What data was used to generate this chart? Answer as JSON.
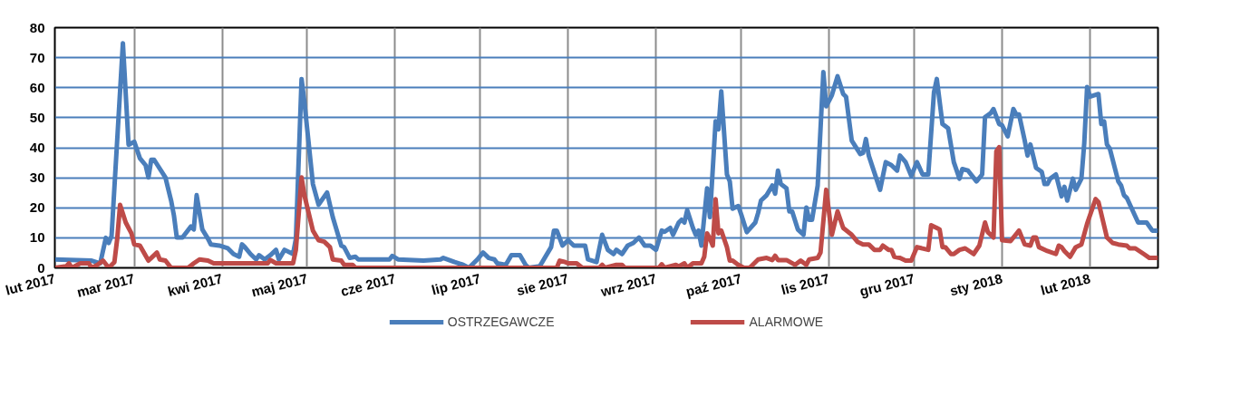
{
  "chart_data": {
    "type": "line",
    "xlim": [
      "2017-02-01",
      "2018-02-25"
    ],
    "ylim": [
      0,
      80
    ],
    "yticks": [
      0,
      10,
      20,
      30,
      40,
      50,
      60,
      70,
      80
    ],
    "xticks": [
      {
        "value": "2017-02-01",
        "label": "lut 2017"
      },
      {
        "value": "2017-03-01",
        "label": "mar 2017"
      },
      {
        "value": "2017-04-01",
        "label": "kwi 2017"
      },
      {
        "value": "2017-05-01",
        "label": "maj 2017"
      },
      {
        "value": "2017-06-01",
        "label": "cze 2017"
      },
      {
        "value": "2017-07-01",
        "label": "lip 2017"
      },
      {
        "value": "2017-08-01",
        "label": "sie 2017"
      },
      {
        "value": "2017-09-01",
        "label": "wrz 2017"
      },
      {
        "value": "2017-10-01",
        "label": "paź 2017"
      },
      {
        "value": "2017-11-01",
        "label": "lis 2017"
      },
      {
        "value": "2017-12-01",
        "label": "gru 2017"
      },
      {
        "value": "2018-01-01",
        "label": "sty 2018"
      },
      {
        "value": "2018-02-01",
        "label": "lut 2018"
      }
    ],
    "grid": true,
    "legend": "bottom",
    "line_style": "solid",
    "series": [
      {
        "name": "OSTRZEGAWCZE",
        "color": "#4a7ebb",
        "x": [
          "2017-02-01",
          "2017-02-14",
          "2017-02-17",
          "2017-02-19",
          "2017-02-20",
          "2017-02-21",
          "2017-02-25",
          "2017-02-27",
          "2017-03-01",
          "2017-03-03",
          "2017-03-05",
          "2017-03-06",
          "2017-03-07",
          "2017-03-08",
          "2017-03-12",
          "2017-03-14",
          "2017-03-15",
          "2017-03-16",
          "2017-03-18",
          "2017-03-21",
          "2017-03-22",
          "2017-03-23",
          "2017-03-25",
          "2017-03-27",
          "2017-03-28",
          "2017-03-31",
          "2017-04-03",
          "2017-04-05",
          "2017-04-07",
          "2017-04-08",
          "2017-04-09",
          "2017-04-11",
          "2017-04-13",
          "2017-04-14",
          "2017-04-16",
          "2017-04-18",
          "2017-04-20",
          "2017-04-21",
          "2017-04-23",
          "2017-04-26",
          "2017-04-27",
          "2017-04-29",
          "2017-04-30",
          "2017-05-03",
          "2017-05-05",
          "2017-05-08",
          "2017-05-10",
          "2017-05-13",
          "2017-05-14",
          "2017-05-16",
          "2017-05-18",
          "2017-05-19",
          "2017-05-30",
          "2017-05-31",
          "2017-06-02",
          "2017-06-11",
          "2017-06-17",
          "2017-06-18",
          "2017-06-22",
          "2017-06-25",
          "2017-06-27",
          "2017-06-30",
          "2017-07-02",
          "2017-07-04",
          "2017-07-06",
          "2017-07-07",
          "2017-07-10",
          "2017-07-12",
          "2017-07-15",
          "2017-07-17",
          "2017-07-18",
          "2017-07-22",
          "2017-07-26",
          "2017-07-27",
          "2017-07-28",
          "2017-07-30",
          "2017-08-01",
          "2017-08-03",
          "2017-08-07",
          "2017-08-08",
          "2017-08-11",
          "2017-08-13",
          "2017-08-15",
          "2017-08-17",
          "2017-08-18",
          "2017-08-20",
          "2017-08-22",
          "2017-08-24",
          "2017-08-26",
          "2017-08-28",
          "2017-08-30",
          "2017-09-01",
          "2017-09-03",
          "2017-09-04",
          "2017-09-06",
          "2017-09-07",
          "2017-09-09",
          "2017-09-10",
          "2017-09-11",
          "2017-09-12",
          "2017-09-14",
          "2017-09-15",
          "2017-09-16",
          "2017-09-17",
          "2017-09-19",
          "2017-09-20",
          "2017-09-22",
          "2017-09-23",
          "2017-09-24",
          "2017-09-26",
          "2017-09-27",
          "2017-09-28",
          "2017-09-30",
          "2017-10-01",
          "2017-10-03",
          "2017-10-06",
          "2017-10-07",
          "2017-10-08",
          "2017-10-10",
          "2017-10-12",
          "2017-10-13",
          "2017-10-14",
          "2017-10-15",
          "2017-10-17",
          "2017-10-18",
          "2017-10-19",
          "2017-10-21",
          "2017-10-23",
          "2017-10-24",
          "2017-10-25",
          "2017-10-26",
          "2017-10-28",
          "2017-10-30",
          "2017-10-31",
          "2017-11-02",
          "2017-11-04",
          "2017-11-06",
          "2017-11-07",
          "2017-11-09",
          "2017-11-12",
          "2017-11-13",
          "2017-11-14",
          "2017-11-15",
          "2017-11-19",
          "2017-11-21",
          "2017-11-23",
          "2017-11-25",
          "2017-11-26",
          "2017-11-28",
          "2017-11-30",
          "2017-12-02",
          "2017-12-04",
          "2017-12-06",
          "2017-12-08",
          "2017-12-09",
          "2017-12-11",
          "2017-12-13",
          "2017-12-15",
          "2017-12-17",
          "2017-12-18",
          "2017-12-20",
          "2017-12-23",
          "2017-12-25",
          "2017-12-26",
          "2017-12-28",
          "2017-12-29",
          "2017-12-31",
          "2018-01-01",
          "2018-01-03",
          "2018-01-05",
          "2018-01-06",
          "2018-01-07",
          "2018-01-09",
          "2018-01-10",
          "2018-01-11",
          "2018-01-13",
          "2018-01-15",
          "2018-01-16",
          "2018-01-17",
          "2018-01-18",
          "2018-01-20",
          "2018-01-22",
          "2018-01-23",
          "2018-01-24",
          "2018-01-26",
          "2018-01-27",
          "2018-01-29",
          "2018-01-30",
          "2018-01-31",
          "2018-02-01",
          "2018-02-04",
          "2018-02-05",
          "2018-02-06",
          "2018-02-07",
          "2018-02-08",
          "2018-02-11",
          "2018-02-12",
          "2018-02-13",
          "2018-02-14",
          "2018-02-18",
          "2018-02-20",
          "2018-02-21",
          "2018-02-23",
          "2018-02-25"
        ],
        "values": [
          2.8,
          2.4,
          1.5,
          10,
          8.3,
          10.6,
          74.8,
          41,
          42,
          36.5,
          34.2,
          30.1,
          36,
          36,
          30.1,
          22.4,
          17.4,
          10.1,
          10.1,
          13.8,
          12.8,
          24.2,
          12.8,
          9.7,
          7.8,
          7.4,
          6.5,
          4.6,
          3.7,
          7.8,
          6.9,
          4.6,
          2.8,
          4.2,
          2.8,
          4.2,
          6,
          2.8,
          6,
          4.6,
          9.7,
          62.9,
          55.2,
          27.9,
          21,
          25.1,
          16.9,
          7.4,
          6.9,
          3.3,
          3.7,
          2.8,
          2.8,
          4,
          2.8,
          2.4,
          2.8,
          3.3,
          1.9,
          1,
          0,
          2.8,
          5.1,
          3.3,
          2.8,
          1.5,
          1,
          4.2,
          4.2,
          1,
          0,
          0.5,
          6.9,
          12.4,
          12.4,
          7.4,
          9.2,
          7.4,
          7.4,
          2.8,
          1.9,
          11,
          6,
          4.6,
          6,
          4.6,
          7.4,
          8.3,
          10.1,
          7.4,
          7.4,
          6,
          12.4,
          12,
          13.3,
          11,
          15.1,
          16,
          15.1,
          19.2,
          13.3,
          11,
          12.4,
          7.4,
          26.5,
          16.9,
          48.8,
          46.1,
          58.8,
          31.1,
          28.8,
          19.7,
          20.6,
          17.9,
          11.9,
          15.1,
          18.3,
          22.4,
          24.2,
          27.4,
          24.7,
          32.4,
          27.9,
          26.5,
          18.8,
          18.8,
          12.8,
          11,
          20.1,
          16,
          16,
          27.4,
          65.2,
          53.8,
          57.5,
          63.8,
          57.9,
          57,
          42.4,
          37.9,
          38.3,
          42.9,
          37.4,
          26,
          35.2,
          34.2,
          32.4,
          37.4,
          35.2,
          30.6,
          35.2,
          31.1,
          31.1,
          58.4,
          62.9,
          47.9,
          46.5,
          35.2,
          29.7,
          32.9,
          32.4,
          28.8,
          31.1,
          50.2,
          51.5,
          52.9,
          47.9,
          47.5,
          43.8,
          52.9,
          51.1,
          51.1,
          42.4,
          37.4,
          41.1,
          33.3,
          32,
          27.9,
          27.9,
          29.7,
          31.1,
          23.8,
          27,
          22.4,
          29.7,
          26,
          29.7,
          41.5,
          60.2,
          57,
          57.9,
          47.9,
          48.8,
          41.1,
          39.7,
          28.8,
          27.4,
          24.2,
          23.3,
          15.1,
          15.1,
          15.1,
          12.4,
          12.4
        ]
      },
      {
        "name": "ALARMOWE",
        "color": "#be4b48",
        "x": [
          "2017-02-01",
          "2017-02-05",
          "2017-02-06",
          "2017-02-07",
          "2017-02-10",
          "2017-02-13",
          "2017-02-14",
          "2017-02-16",
          "2017-02-18",
          "2017-02-20",
          "2017-02-22",
          "2017-02-23",
          "2017-02-24",
          "2017-02-26",
          "2017-02-28",
          "2017-03-01",
          "2017-03-03",
          "2017-03-06",
          "2017-03-07",
          "2017-03-09",
          "2017-03-10",
          "2017-03-12",
          "2017-03-14",
          "2017-03-20",
          "2017-03-22",
          "2017-03-24",
          "2017-03-27",
          "2017-03-29",
          "2017-04-17",
          "2017-04-18",
          "2017-04-20",
          "2017-04-26",
          "2017-04-27",
          "2017-04-29",
          "2017-04-30",
          "2017-05-03",
          "2017-05-05",
          "2017-05-07",
          "2017-05-09",
          "2017-05-10",
          "2017-05-13",
          "2017-05-14",
          "2017-05-17",
          "2017-05-18",
          "2017-07-28",
          "2017-07-29",
          "2017-07-31",
          "2017-08-01",
          "2017-08-04",
          "2017-08-06",
          "2017-08-12",
          "2017-08-13",
          "2017-08-14",
          "2017-08-18",
          "2017-08-20",
          "2017-08-21",
          "2017-09-02",
          "2017-09-03",
          "2017-09-04",
          "2017-09-08",
          "2017-09-09",
          "2017-09-11",
          "2017-09-12",
          "2017-09-14",
          "2017-09-17",
          "2017-09-18",
          "2017-09-19",
          "2017-09-20",
          "2017-09-21",
          "2017-09-22",
          "2017-09-23",
          "2017-09-24",
          "2017-09-26",
          "2017-09-27",
          "2017-09-28",
          "2017-09-30",
          "2017-10-02",
          "2017-10-04",
          "2017-10-07",
          "2017-10-10",
          "2017-10-12",
          "2017-10-13",
          "2017-10-14",
          "2017-10-17",
          "2017-10-20",
          "2017-10-22",
          "2017-10-24",
          "2017-10-25",
          "2017-10-28",
          "2017-10-29",
          "2017-10-31",
          "2017-11-02",
          "2017-11-04",
          "2017-11-06",
          "2017-11-09",
          "2017-11-11",
          "2017-11-13",
          "2017-11-15",
          "2017-11-17",
          "2017-11-19",
          "2017-11-20",
          "2017-11-22",
          "2017-11-23",
          "2017-11-24",
          "2017-11-26",
          "2017-11-28",
          "2017-11-30",
          "2017-12-02",
          "2017-12-06",
          "2017-12-07",
          "2017-12-09",
          "2017-12-10",
          "2017-12-11",
          "2017-12-12",
          "2017-12-14",
          "2017-12-15",
          "2017-12-17",
          "2017-12-19",
          "2017-12-22",
          "2017-12-24",
          "2017-12-26",
          "2017-12-27",
          "2017-12-29",
          "2017-12-30",
          "2017-12-31",
          "2018-01-01",
          "2018-01-04",
          "2018-01-07",
          "2018-01-09",
          "2018-01-11",
          "2018-01-12",
          "2018-01-13",
          "2018-01-14",
          "2018-01-17",
          "2018-01-20",
          "2018-01-21",
          "2018-01-22",
          "2018-01-23",
          "2018-01-25",
          "2018-01-27",
          "2018-01-29",
          "2018-01-31",
          "2018-02-03",
          "2018-02-04",
          "2018-02-07",
          "2018-02-09",
          "2018-02-11",
          "2018-02-14",
          "2018-02-15",
          "2018-02-17",
          "2018-02-20",
          "2018-02-22",
          "2018-02-25"
        ],
        "values": [
          0,
          0.5,
          1.5,
          0,
          1.5,
          1.5,
          0,
          1,
          2.4,
          0,
          1.9,
          9.7,
          21,
          15.1,
          11.5,
          7.8,
          7.4,
          2.4,
          3.3,
          5.1,
          2.8,
          2.4,
          0,
          0,
          1.5,
          2.8,
          2.4,
          1.5,
          1.5,
          2.6,
          1.5,
          1.5,
          6,
          30.1,
          24.2,
          12.4,
          9.2,
          8.7,
          6.9,
          2.8,
          2.4,
          1,
          1,
          0,
          0,
          2.4,
          1.9,
          1.5,
          1.5,
          0,
          0,
          1,
          0,
          1,
          1,
          0,
          0,
          1.2,
          0,
          1,
          0.5,
          1.5,
          0,
          1.5,
          1.5,
          3.7,
          11.5,
          9.7,
          7.4,
          22.9,
          11.5,
          12.4,
          6.9,
          2.4,
          2.4,
          1,
          0,
          0,
          2.8,
          3.3,
          2.6,
          4,
          2.6,
          2.6,
          1,
          2.4,
          1,
          2.8,
          3.3,
          5.1,
          26,
          11,
          18.8,
          13.3,
          11,
          8.7,
          7.8,
          7.8,
          6,
          6,
          7.4,
          6,
          6,
          3.7,
          3.3,
          2.4,
          2.4,
          6.9,
          6,
          14.2,
          13.3,
          12.8,
          6.9,
          6.9,
          4.6,
          4.6,
          6,
          6.5,
          4.6,
          7.4,
          15.1,
          11.9,
          10.1,
          38.8,
          40.2,
          9.2,
          8.9,
          12.4,
          7.8,
          7.4,
          10.1,
          10.1,
          6.9,
          5.6,
          4.6,
          7.4,
          6.9,
          5.6,
          3.7,
          6.9,
          7.8,
          14.7,
          22.9,
          21.9,
          10.1,
          8.3,
          7.8,
          7.4,
          6.5,
          6.5,
          4.6,
          3.3,
          3.3
        ]
      }
    ]
  }
}
